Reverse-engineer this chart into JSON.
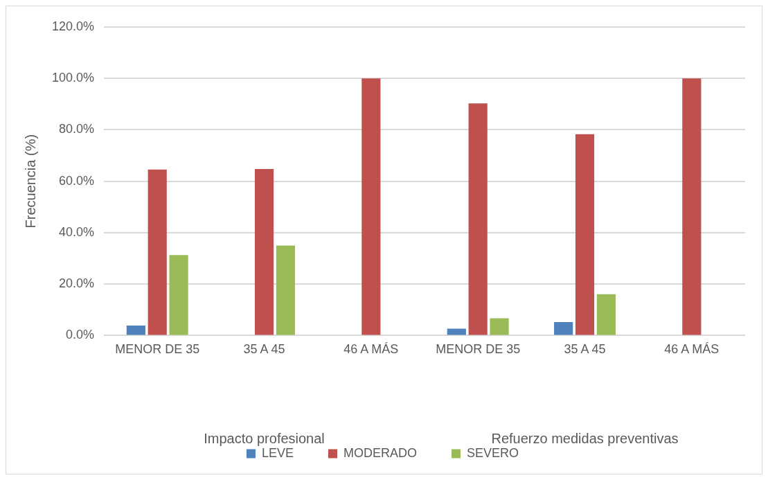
{
  "chart_data": {
    "type": "bar",
    "ylabel": "Frecuencia (%)",
    "categories": [
      "MENOR DE 35",
      "35 A 45",
      "46 A MÁS",
      "MENOR DE 35",
      "35 A 45",
      "46 A MÁS"
    ],
    "annotations": [
      "Impacto profesional",
      "Refuerzo medidas preventivas"
    ],
    "series": [
      {
        "name": "LEVE",
        "color": "#4f81bd",
        "values": [
          3.9,
          0,
          0,
          2.7,
          5.2,
          0
        ]
      },
      {
        "name": "MODERADO",
        "color": "#c0504d",
        "values": [
          64.6,
          64.8,
          100,
          90.3,
          78.3,
          100
        ]
      },
      {
        "name": "SEVERO",
        "color": "#9bbb59",
        "values": [
          31.3,
          35.0,
          0,
          6.7,
          16.1,
          0
        ]
      }
    ],
    "ylim": [
      0,
      120
    ],
    "yticks": [
      {
        "value": 0,
        "label": "0.0%"
      },
      {
        "value": 20,
        "label": "20.0%"
      },
      {
        "value": 40,
        "label": "40.0%"
      },
      {
        "value": 60,
        "label": "60.0%"
      },
      {
        "value": 80,
        "label": "80.0%"
      },
      {
        "value": 100,
        "label": "100.0%"
      },
      {
        "value": 120,
        "label": "120.0%"
      }
    ],
    "grid": "y",
    "legend": "bottom"
  }
}
